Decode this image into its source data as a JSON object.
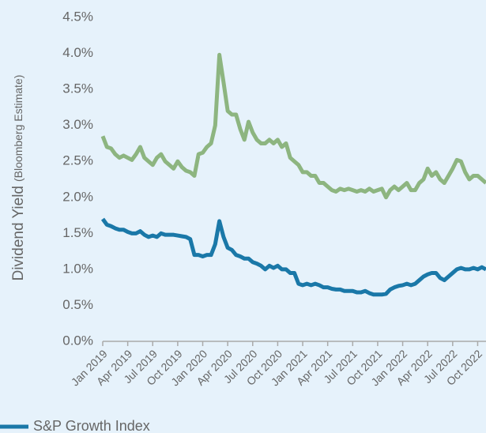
{
  "chart_data": {
    "type": "line",
    "y_label": "Dividend Yield",
    "y_label_note": "(Bloomberg Estimate)",
    "x": [
      0,
      0.5,
      1,
      1.5,
      2,
      2.5,
      3,
      3.5,
      4,
      4.5,
      5,
      5.5,
      6,
      6.5,
      7,
      7.5,
      8,
      8.5,
      9,
      9.5,
      10,
      10.5,
      11,
      11.5,
      12,
      12.5,
      13,
      13.5,
      14,
      14.5,
      15,
      15.5,
      16,
      16.5,
      17,
      17.5,
      18,
      18.5,
      19,
      19.5,
      20,
      20.5,
      21,
      21.5,
      22,
      22.5,
      23,
      23.5,
      24,
      24.5,
      25,
      25.5,
      26,
      26.5,
      27,
      27.5,
      28,
      28.5,
      29,
      29.5,
      30,
      30.5,
      31,
      31.5,
      32,
      32.5,
      33,
      33.5,
      34,
      34.5,
      35,
      35.5,
      36,
      36.5,
      37,
      37.5,
      38,
      38.5,
      39,
      39.5,
      40,
      40.5,
      41,
      41.5,
      42,
      42.5,
      43,
      43.5,
      44,
      44.5,
      45,
      45.5,
      46
    ],
    "series": [
      {
        "color": "#8db580",
        "values": [
          2.85,
          2.7,
          2.68,
          2.6,
          2.55,
          2.58,
          2.55,
          2.52,
          2.6,
          2.7,
          2.55,
          2.5,
          2.45,
          2.55,
          2.6,
          2.5,
          2.45,
          2.4,
          2.5,
          2.42,
          2.37,
          2.35,
          2.3,
          2.6,
          2.62,
          2.7,
          2.75,
          3.0,
          3.98,
          3.6,
          3.2,
          3.15,
          3.15,
          2.95,
          2.8,
          3.05,
          2.9,
          2.8,
          2.75,
          2.75,
          2.8,
          2.75,
          2.8,
          2.7,
          2.75,
          2.55,
          2.5,
          2.45,
          2.35,
          2.35,
          2.3,
          2.3,
          2.2,
          2.2,
          2.15,
          2.1,
          2.08,
          2.12,
          2.1,
          2.12,
          2.1,
          2.08,
          2.1,
          2.08,
          2.12,
          2.08,
          2.1,
          2.12,
          2.0,
          2.1,
          2.15,
          2.1,
          2.15,
          2.2,
          2.1,
          2.1,
          2.2,
          2.25,
          2.4,
          2.3,
          2.35,
          2.25,
          2.2,
          2.3,
          2.4,
          2.52,
          2.5,
          2.35,
          2.25,
          2.3,
          2.3,
          2.25,
          2.2
        ]
      },
      {
        "name": "S&P Growth Index",
        "color": "#1a78a8",
        "values": [
          1.7,
          1.62,
          1.6,
          1.57,
          1.55,
          1.55,
          1.52,
          1.5,
          1.5,
          1.53,
          1.48,
          1.45,
          1.47,
          1.45,
          1.5,
          1.48,
          1.48,
          1.48,
          1.47,
          1.46,
          1.45,
          1.42,
          1.2,
          1.2,
          1.18,
          1.2,
          1.2,
          1.35,
          1.67,
          1.45,
          1.3,
          1.27,
          1.2,
          1.18,
          1.15,
          1.15,
          1.1,
          1.08,
          1.05,
          1.0,
          1.05,
          1.02,
          1.05,
          1.0,
          1.0,
          0.95,
          0.95,
          0.8,
          0.78,
          0.8,
          0.78,
          0.8,
          0.78,
          0.75,
          0.75,
          0.73,
          0.72,
          0.72,
          0.7,
          0.7,
          0.7,
          0.68,
          0.68,
          0.7,
          0.67,
          0.65,
          0.65,
          0.65,
          0.66,
          0.72,
          0.75,
          0.77,
          0.78,
          0.8,
          0.78,
          0.8,
          0.85,
          0.9,
          0.93,
          0.95,
          0.95,
          0.88,
          0.85,
          0.9,
          0.95,
          1.0,
          1.02,
          1.0,
          1.0,
          1.02,
          1.0,
          1.03,
          1.0
        ]
      }
    ],
    "xlim": [
      0,
      46
    ],
    "xticks": [
      {
        "value": 0,
        "label": "Jan 2019"
      },
      {
        "value": 3,
        "label": "Apr 2019"
      },
      {
        "value": 6,
        "label": "Jul 2019"
      },
      {
        "value": 9,
        "label": "Oct 2019"
      },
      {
        "value": 12,
        "label": "Jan 2020"
      },
      {
        "value": 15,
        "label": "Apr 2020"
      },
      {
        "value": 18,
        "label": "Jul 2020"
      },
      {
        "value": 21,
        "label": "Oct 2020"
      },
      {
        "value": 24,
        "label": "Jan 2021"
      },
      {
        "value": 27,
        "label": "Apr 2021"
      },
      {
        "value": 30,
        "label": "Jul 2021"
      },
      {
        "value": 33,
        "label": "Oct 2021"
      },
      {
        "value": 36,
        "label": "Jan 2022"
      },
      {
        "value": 39,
        "label": "Apr 2022"
      },
      {
        "value": 42,
        "label": "Jul 2022"
      },
      {
        "value": 45,
        "label": "Oct 2022"
      }
    ],
    "ylim": [
      0,
      4.5
    ],
    "yticks": [
      {
        "value": 0,
        "label": "0.0%"
      },
      {
        "value": 0.5,
        "label": "0.5%"
      },
      {
        "value": 1,
        "label": "1.0%"
      },
      {
        "value": 1.5,
        "label": "1.5%"
      },
      {
        "value": 2,
        "label": "2.0%"
      },
      {
        "value": 2.5,
        "label": "2.5%"
      },
      {
        "value": 3,
        "label": "3.0%"
      },
      {
        "value": 3.5,
        "label": "3.5%"
      },
      {
        "value": 4,
        "label": "4.0%"
      },
      {
        "value": 4.5,
        "label": "4.5%"
      }
    ]
  }
}
